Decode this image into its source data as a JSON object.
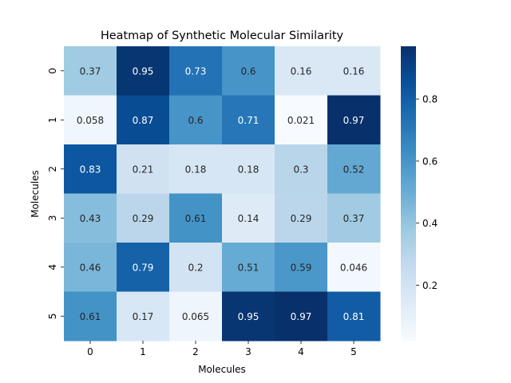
{
  "chart_data": {
    "type": "heatmap",
    "title": "Heatmap of Synthetic Molecular Similarity",
    "xlabel": "Molecules",
    "ylabel": "Molecules",
    "x_categories": [
      "0",
      "1",
      "2",
      "3",
      "4",
      "5"
    ],
    "y_categories": [
      "0",
      "1",
      "2",
      "3",
      "4",
      "5"
    ],
    "values": [
      [
        0.37,
        0.95,
        0.73,
        0.6,
        0.16,
        0.16
      ],
      [
        0.058,
        0.87,
        0.6,
        0.71,
        0.021,
        0.97
      ],
      [
        0.83,
        0.21,
        0.18,
        0.18,
        0.3,
        0.52
      ],
      [
        0.43,
        0.29,
        0.61,
        0.14,
        0.29,
        0.37
      ],
      [
        0.46,
        0.79,
        0.2,
        0.51,
        0.59,
        0.046
      ],
      [
        0.61,
        0.17,
        0.065,
        0.95,
        0.97,
        0.81
      ]
    ],
    "value_labels": [
      [
        "0.37",
        "0.95",
        "0.73",
        "0.6",
        "0.16",
        "0.16"
      ],
      [
        "0.058",
        "0.87",
        "0.6",
        "0.71",
        "0.021",
        "0.97"
      ],
      [
        "0.83",
        "0.21",
        "0.18",
        "0.18",
        "0.3",
        "0.52"
      ],
      [
        "0.43",
        "0.29",
        "0.61",
        "0.14",
        "0.29",
        "0.37"
      ],
      [
        "0.46",
        "0.79",
        "0.2",
        "0.51",
        "0.59",
        "0.046"
      ],
      [
        "0.61",
        "0.17",
        "0.065",
        "0.95",
        "0.97",
        "0.81"
      ]
    ],
    "colorscale": "Blues",
    "colorbar": {
      "range": [
        0.021,
        0.97
      ],
      "ticks": [
        0.2,
        0.4,
        0.6,
        0.8
      ],
      "tick_labels": [
        "0.2",
        "0.4",
        "0.6",
        "0.8"
      ]
    },
    "annotated": true
  }
}
